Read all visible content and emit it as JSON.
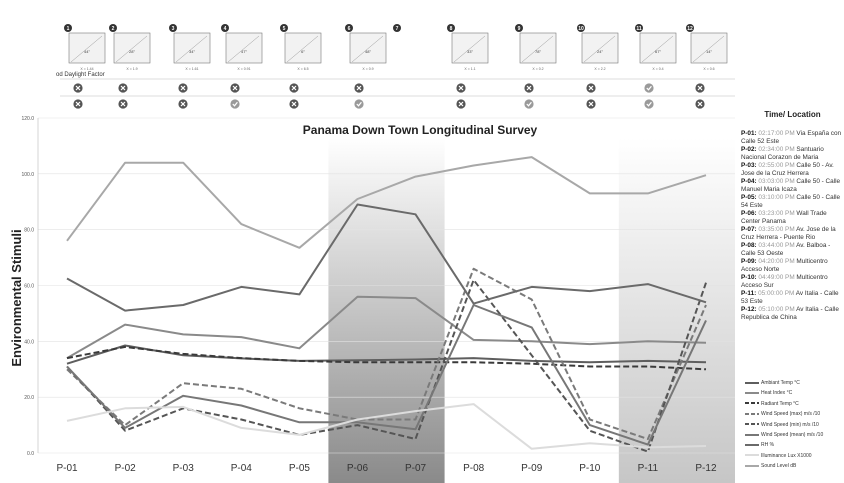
{
  "header": {
    "factor_label": "od Daylight Factor",
    "thumbs": [
      {
        "num": "1",
        "angle": "44°",
        "note": "X = 1.44"
      },
      {
        "num": "2",
        "angle": "28°",
        "note": "X = 1.9"
      },
      {
        "num": "3",
        "angle": "34°",
        "note": "X = 1.61"
      },
      {
        "num": "4",
        "angle": "47°",
        "note": "X = 0.91"
      },
      {
        "num": "5",
        "angle": "6°",
        "note": "X = 6.5"
      },
      {
        "num": "6",
        "angle": "48°",
        "note": "X = 0.9"
      },
      {
        "num": "7",
        "angle": "",
        "note": ""
      },
      {
        "num": "8",
        "angle": "33°",
        "note": "X = 1.1"
      },
      {
        "num": "9",
        "angle": "78°",
        "note": "X = 0.2"
      },
      {
        "num": "10",
        "angle": "24°",
        "note": "X = 2.2"
      },
      {
        "num": "11",
        "angle": "67°",
        "note": "X = 0.4"
      },
      {
        "num": "12",
        "angle": "14°",
        "note": "X = 0.6"
      }
    ],
    "marks_row1": [
      "x",
      "x",
      "x",
      "x",
      "x",
      "x",
      "",
      "x",
      "x",
      "x",
      "check",
      "x"
    ],
    "marks_row2": [
      "x",
      "x",
      "x",
      "check",
      "x",
      "check",
      "",
      "x",
      "check",
      "x",
      "check",
      "x"
    ]
  },
  "sidebar": {
    "title": "Time/ Location",
    "locations": [
      {
        "id": "P-01:",
        "time": "02:17:00 PM",
        "place": "Via España con Calle 52 Este"
      },
      {
        "id": "P-02:",
        "time": "02:34:00 PM",
        "place": "Santuario Nacional Corazon de Maria"
      },
      {
        "id": "P-03:",
        "time": "02:55:00 PM",
        "place": "Calle 50 - Av. Jose de la Cruz Herrera"
      },
      {
        "id": "P-04:",
        "time": "03:03:00 PM",
        "place": "Calle 50 - Calle Manuel Maria Icaza"
      },
      {
        "id": "P-05:",
        "time": "03:10:00 PM",
        "place": "Calle 50 - Calle 54 Este"
      },
      {
        "id": "P-06:",
        "time": "03:23:00 PM",
        "place": "Wall Trade Center Panama"
      },
      {
        "id": "P-07:",
        "time": "03:35:00 PM",
        "place": "Av. Jose de la Cruz Herrera - Puente Rio Matasnillo"
      },
      {
        "id": "P-08:",
        "time": "03:44:00 PM",
        "place": "Av. Balboa - Calle 53 Oeste"
      },
      {
        "id": "P-09:",
        "time": "04:20:00 PM",
        "place": "Multicentro Acceso Norte"
      },
      {
        "id": "P-10:",
        "time": "04:49:00 PM",
        "place": "Multicentro Acceso Sur"
      },
      {
        "id": "P-11:",
        "time": "05:00:00 PM",
        "place": "Av Italia - Calle 53 Este"
      },
      {
        "id": "P-12:",
        "time": "05:10:00 PM",
        "place": "Av Italia - Calle Republica de China"
      }
    ]
  },
  "colors": {
    "ambient": "#5e5e5e",
    "heat": "#8a8a8a",
    "radiant": "#3a3a3a",
    "wind_max": "#7a7a7a",
    "wind_min": "#555555",
    "wind_mean": "#777777",
    "rh": "#6a6a6a",
    "lux": "#dcdcdc",
    "sound": "#a8a8a8"
  },
  "chart_data": {
    "type": "line",
    "title": "Panama Down Town Longitudinal Survey",
    "ylabel": "Environmental Stimuli",
    "xlabel": "",
    "ylim": [
      0,
      120
    ],
    "yticks": [
      "0.0",
      "20.0",
      "40.0",
      "60.0",
      "80.0",
      "100.0",
      "120.0"
    ],
    "categories": [
      "P-01",
      "P-02",
      "P-03",
      "P-04",
      "P-05",
      "P-06",
      "P-07",
      "P-08",
      "P-09",
      "P-10",
      "P-11",
      "P-12"
    ],
    "grid": true,
    "legend_position": "bottom-right",
    "shaded_bands": [
      {
        "from": "P-06",
        "to": "P-07",
        "style": "dark"
      },
      {
        "from": "P-11",
        "to": "P-12",
        "style": "light"
      }
    ],
    "series": [
      {
        "name": "Ambiant Temp °C",
        "values": [
          32.0,
          38.5,
          35.0,
          33.9,
          33.0,
          33.2,
          33.5,
          34.0,
          33.0,
          32.5,
          33.0,
          32.5
        ],
        "style": "solid",
        "color_key": "ambient"
      },
      {
        "name": "Heat Index °C",
        "values": [
          34.0,
          46.0,
          42.5,
          41.5,
          37.5,
          56.0,
          55.5,
          40.5,
          40.0,
          39.0,
          40.0,
          39.5
        ],
        "style": "solid",
        "color_key": "heat"
      },
      {
        "name": "Radiant Temp °C",
        "values": [
          34.0,
          38.0,
          35.5,
          34.0,
          33.0,
          32.5,
          32.5,
          32.5,
          32.0,
          31.0,
          31.0,
          30.0
        ],
        "style": "dash",
        "color_key": "radiant"
      },
      {
        "name": "Wind Speed (max) m/s /10",
        "values": [
          30.0,
          10.0,
          25.0,
          23.0,
          16.0,
          12.0,
          12.0,
          66.0,
          55.0,
          12.0,
          5.0,
          53.0
        ],
        "style": "dash",
        "color_key": "wind_max"
      },
      {
        "name": "Wind Speed (min) m/s /10",
        "values": [
          31.0,
          8.0,
          16.0,
          12.0,
          6.5,
          10.0,
          5.0,
          62.0,
          35.0,
          8.0,
          0.5,
          61.0
        ],
        "style": "dash",
        "color_key": "wind_min"
      },
      {
        "name": "Wind Speed (mean) m/s /10",
        "values": [
          31.0,
          9.0,
          20.5,
          17.0,
          11.0,
          11.0,
          8.5,
          53.0,
          45.0,
          10.0,
          3.0,
          47.5
        ],
        "style": "solid",
        "color_key": "wind_mean"
      },
      {
        "name": "RH %",
        "values": [
          62.5,
          51.0,
          53.0,
          59.5,
          56.8,
          89.0,
          85.5,
          53.5,
          59.5,
          58.0,
          60.5,
          54.0
        ],
        "style": "solid",
        "color_key": "rh"
      },
      {
        "name": "Illuminance Lux X1000",
        "values": [
          11.5,
          16.0,
          16.5,
          9.0,
          6.5,
          12.0,
          15.0,
          17.5,
          1.5,
          3.5,
          2.0,
          2.5
        ],
        "style": "solid",
        "color_key": "lux"
      },
      {
        "name": "Sound Level dB",
        "values": [
          76.0,
          104.0,
          104.0,
          82.0,
          73.5,
          91.0,
          99.0,
          103.0,
          106.0,
          93.0,
          93.0,
          99.5
        ],
        "style": "solid",
        "color_key": "sound"
      }
    ]
  }
}
